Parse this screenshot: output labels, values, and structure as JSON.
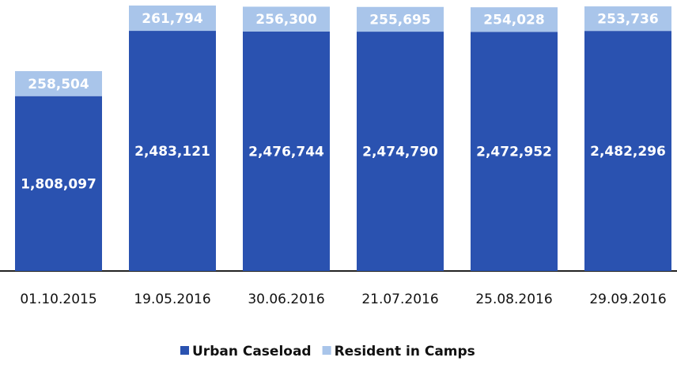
{
  "chart_data": {
    "type": "stacked-bar",
    "categories": [
      "01.10.2015",
      "19.05.2016",
      "30.06.2016",
      "21.07.2016",
      "25.08.2016",
      "29.09.2016"
    ],
    "series": [
      {
        "name": "Urban Caseload",
        "color": "#2a52b0",
        "values": [
          1808097,
          2483121,
          2476744,
          2474790,
          2472952,
          2482296
        ],
        "value_labels": [
          "1,808,097",
          "2,483,121",
          "2,476,744",
          "2,474,790",
          "2,472,952",
          "2,482,296"
        ]
      },
      {
        "name": "Resident in Camps",
        "color": "#a9c5ea",
        "values": [
          258504,
          261794,
          256300,
          255695,
          254028,
          253736
        ],
        "value_labels": [
          "258,504",
          "261,794",
          "256,300",
          "255,695",
          "254,028",
          "253,736"
        ]
      }
    ],
    "legend": "bottom"
  }
}
